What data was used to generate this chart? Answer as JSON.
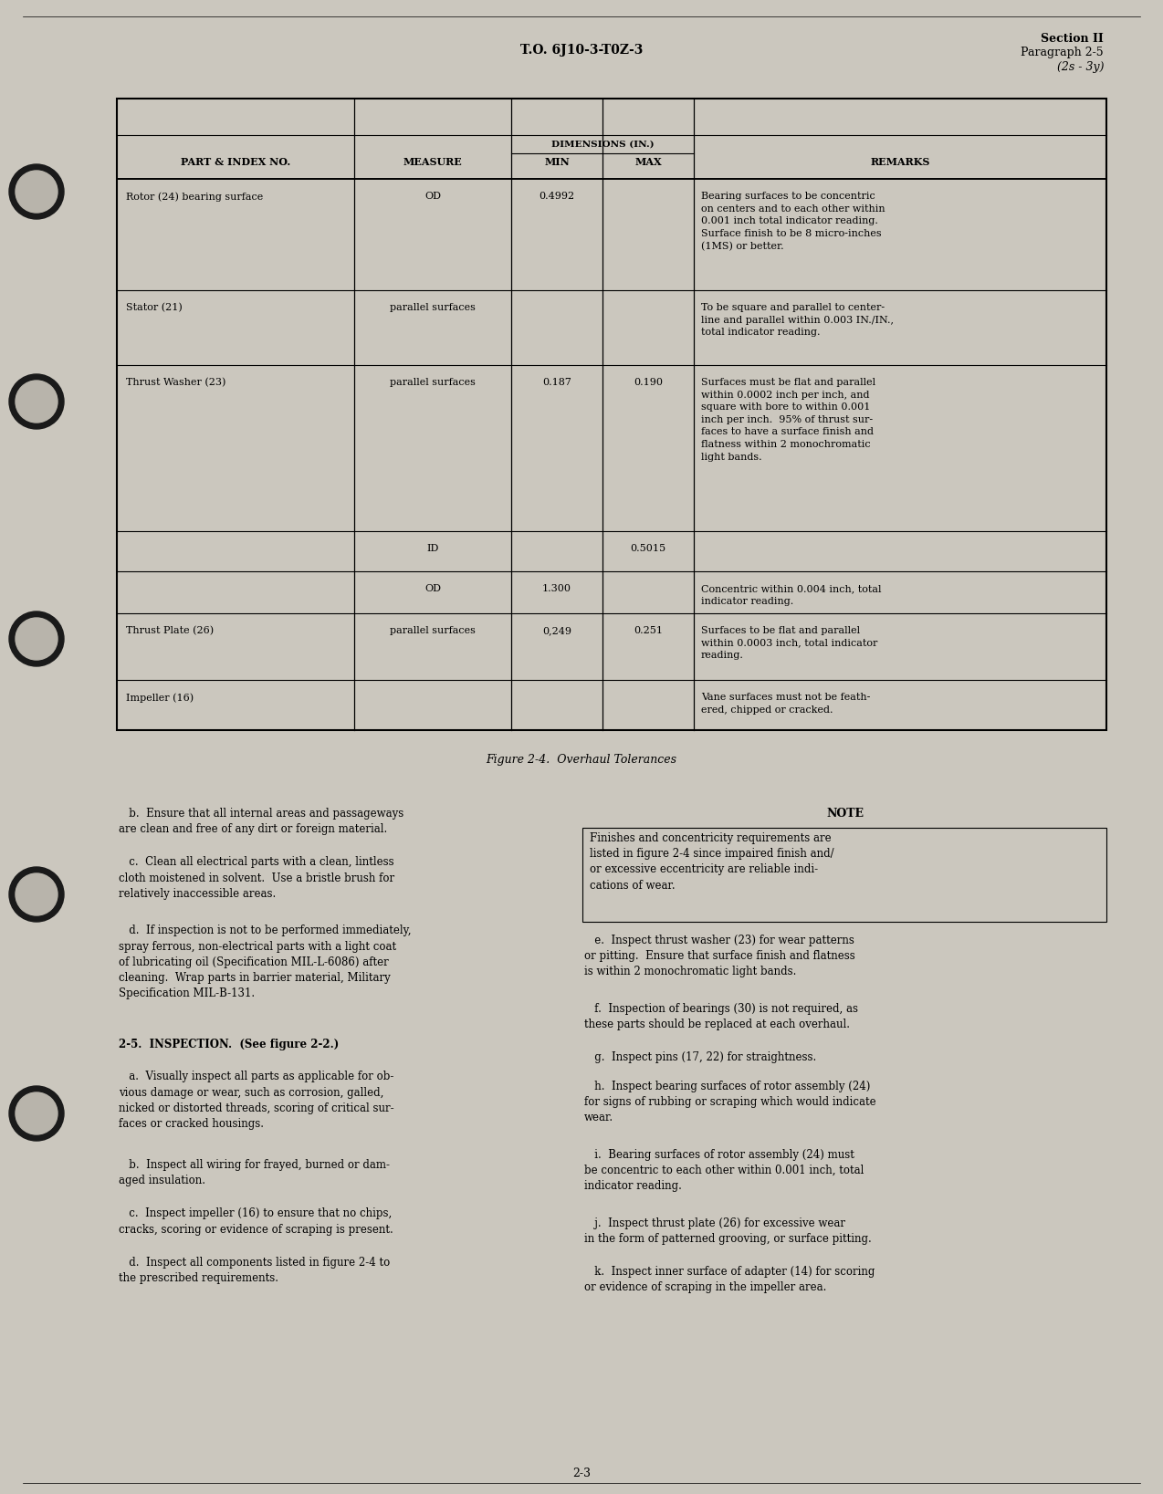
{
  "page_background": "#cbc7be",
  "header_text_center": "T.O. 6J10-3-T0Z-3",
  "header_text_right1": "Section II",
  "header_text_right2": "Paragraph 2-5",
  "header_text_right3": "(2s - 3y)",
  "figure_caption": "Figure 2-4.  Overhaul Tolerances",
  "page_number": "2-3",
  "table": {
    "rows": [
      {
        "part": "Rotor (24) bearing surface",
        "measure": "OD",
        "min": "0.4992",
        "max": "",
        "remarks": "Bearing surfaces to be concentric\non centers and to each other within\n0.001 inch total indicator reading.\nSurface finish to be 8 micro-inches\n(1MS) or better."
      },
      {
        "part": "Stator (21)",
        "measure": "parallel surfaces",
        "min": "",
        "max": "",
        "remarks": "To be square and parallel to center-\nline and parallel within 0.003 IN./IN.,\ntotal indicator reading."
      },
      {
        "part": "Thrust Washer (23)",
        "measure": "parallel surfaces",
        "min": "0.187",
        "max": "0.190",
        "remarks": "Surfaces must be flat and parallel\nwithin 0.0002 inch per inch, and\nsquare with bore to within 0.001\ninch per inch.  95% of thrust sur-\nfaces to have a surface finish and\nflatness within 2 monochromatic\nlight bands."
      },
      {
        "part": "",
        "measure": "ID",
        "min": "",
        "max": "0.5015",
        "remarks": ""
      },
      {
        "part": "",
        "measure": "OD",
        "min": "1.300",
        "max": "",
        "remarks": "Concentric within 0.004 inch, total\nindicator reading."
      },
      {
        "part": "Thrust Plate (26)",
        "measure": "parallel surfaces",
        "min": "0,249",
        "max": "0.251",
        "remarks": "Surfaces to be flat and parallel\nwithin 0.0003 inch, total indicator\nreading."
      },
      {
        "part": "Impeller (16)",
        "measure": "",
        "min": "",
        "max": "",
        "remarks": "Vane surfaces must not be feath-\nered, chipped or cracked."
      }
    ]
  },
  "body_left": [
    {
      "text": "   b.  Ensure that all internal areas and passageways\nare clean and free of any dirt or foreign material.",
      "bold": false,
      "indent": false
    },
    {
      "text": "   c.  Clean all electrical parts with a clean, lintless\ncloth moistened in solvent.  Use a bristle brush for\nrelatively inaccessible areas.",
      "bold": false,
      "indent": false
    },
    {
      "text": "   d.  If inspection is not to be performed immediately,\nspray ferrous, non-electrical parts with a light coat\nof lubricating oil (Specification MIL-L-6086) after\ncleaning.  Wrap parts in barrier material, Military\nSpecification MIL-B-131.",
      "bold": false,
      "indent": false
    },
    {
      "text": "2-5.  INSPECTION.  (See figure 2-2.)",
      "bold": true,
      "indent": false
    },
    {
      "text": "   a.  Visually inspect all parts as applicable for ob-\nvious damage or wear, such as corrosion, galled,\nnicked or distorted threads, scoring of critical sur-\nfaces or cracked housings.",
      "bold": false,
      "indent": false
    },
    {
      "text": "   b.  Inspect all wiring for frayed, burned or dam-\naged insulation.",
      "bold": false,
      "indent": false
    },
    {
      "text": "   c.  Inspect impeller (16) to ensure that no chips,\ncracks, scoring or evidence of scraping is present.",
      "bold": false,
      "indent": false
    },
    {
      "text": "   d.  Inspect all components listed in figure 2-4 to\nthe prescribed requirements.",
      "bold": false,
      "indent": false
    }
  ],
  "body_right_note_header": "NOTE",
  "body_right_note_text": "Finishes and concentricity requirements are\nlisted in figure 2-4 since impaired finish and/\nor excessive eccentricity are reliable indi-\ncations of wear.",
  "body_right": [
    "   e.  Inspect thrust washer (23) for wear patterns\nor pitting.  Ensure that surface finish and flatness\nis within 2 monochromatic light bands.",
    "   f.  Inspection of bearings (30) is not required, as\nthese parts should be replaced at each overhaul.",
    "   g.  Inspect pins (17, 22) for straightness.",
    "   h.  Inspect bearing surfaces of rotor assembly (24)\nfor signs of rubbing or scraping which would indicate\nwear.",
    "   i.  Bearing surfaces of rotor assembly (24) must\nbe concentric to each other within 0.001 inch, total\nindicator reading.",
    "   j.  Inspect thrust plate (26) for excessive wear\nin the form of patterned grooving, or surface pitting.",
    "   k.  Inspect inner surface of adapter (14) for scoring\nor evidence of scraping in the impeller area."
  ]
}
